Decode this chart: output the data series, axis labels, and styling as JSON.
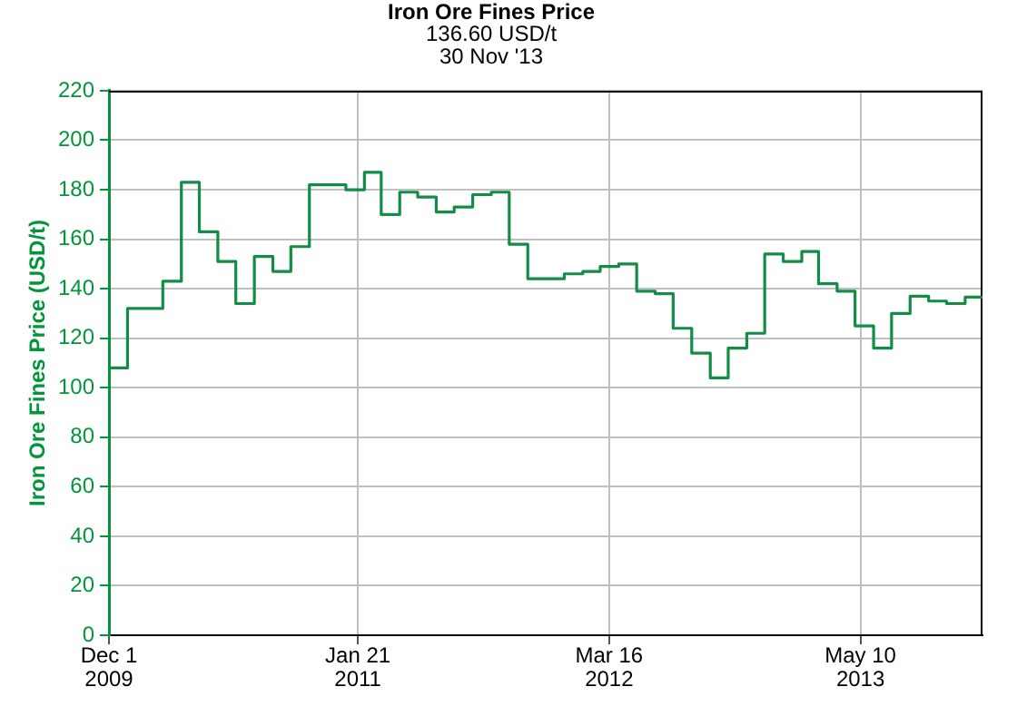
{
  "chart_data": {
    "type": "step",
    "title": "Iron Ore Fines Price",
    "subtitle": "136.60 USD/t\n30 Nov '13",
    "ylabel": "Iron Ore Fines Price (USD/t)",
    "x": [
      "2009-12-01",
      "2010-01-01",
      "2010-03-01",
      "2010-04-01",
      "2010-05-01",
      "2010-06-01",
      "2010-07-01",
      "2010-08-01",
      "2010-09-01",
      "2010-10-01",
      "2010-11-01",
      "2011-01-01",
      "2011-02-01",
      "2011-03-01",
      "2011-04-01",
      "2011-05-01",
      "2011-06-01",
      "2011-07-01",
      "2011-08-01",
      "2011-09-01",
      "2011-10-01",
      "2011-11-01",
      "2012-01-01",
      "2012-02-01",
      "2012-03-01",
      "2012-04-01",
      "2012-05-01",
      "2012-06-01",
      "2012-07-01",
      "2012-08-01",
      "2012-09-01",
      "2012-10-01",
      "2012-11-01",
      "2012-12-01",
      "2013-01-01",
      "2013-02-01",
      "2013-03-01",
      "2013-04-01",
      "2013-05-01",
      "2013-06-01",
      "2013-07-01",
      "2013-08-01",
      "2013-09-01",
      "2013-10-01",
      "2013-11-01",
      "2013-11-30"
    ],
    "values": [
      108,
      132,
      143,
      183,
      163,
      151,
      134,
      153,
      147,
      157,
      182,
      180,
      187,
      170,
      179,
      177,
      171,
      173,
      178,
      179,
      158,
      144,
      146,
      147,
      149,
      150,
      139,
      138,
      124,
      114,
      104,
      116,
      122,
      154,
      151,
      155,
      142,
      139,
      125,
      116,
      130,
      137,
      135,
      134,
      136.6,
      136.6
    ],
    "color": "#138d45",
    "xlim": [
      "2009-12-01",
      "2013-11-30"
    ],
    "xticks": [
      {
        "value": "2009-12-01",
        "label": "Dec 1\n2009"
      },
      {
        "value": "2011-01-21",
        "label": "Jan 21\n2011"
      },
      {
        "value": "2012-03-16",
        "label": "Mar 16\n2012"
      },
      {
        "value": "2013-05-10",
        "label": "May 10\n2013"
      }
    ],
    "ylim": [
      0,
      220
    ],
    "yticks": [
      0,
      20,
      40,
      60,
      80,
      100,
      120,
      140,
      160,
      180,
      200,
      220
    ],
    "grid": true
  }
}
